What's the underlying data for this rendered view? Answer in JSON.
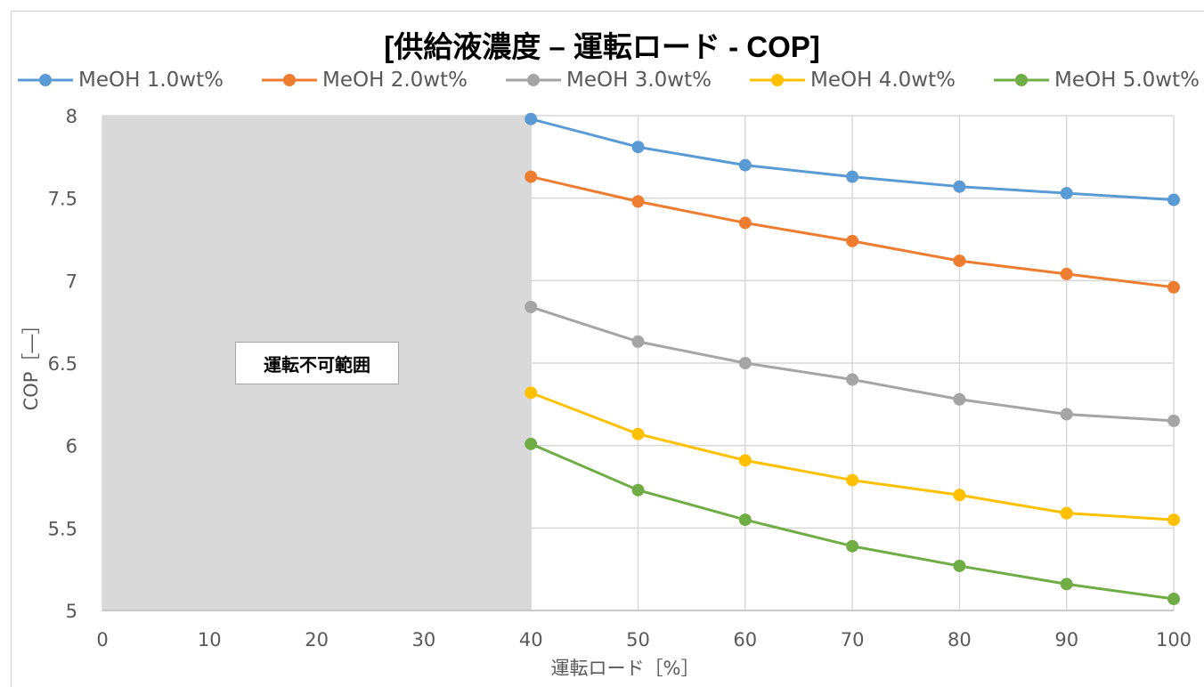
{
  "chart_data": {
    "type": "line",
    "title": "[供給液濃度 – 運転ロード - COP]",
    "xlabel": "運転ロード［%］",
    "ylabel": "COP［―］",
    "xlim": [
      0,
      100
    ],
    "ylim": [
      5,
      8
    ],
    "x_ticks": [
      "0",
      "10",
      "20",
      "30",
      "40",
      "50",
      "60",
      "70",
      "80",
      "90",
      "100"
    ],
    "y_ticks": [
      "5",
      "5.5",
      "6",
      "6.5",
      "7",
      "7.5",
      "8"
    ],
    "grid": true,
    "legend_position": "top",
    "x": [
      40,
      50,
      60,
      70,
      80,
      90,
      100
    ],
    "series": [
      {
        "name": "MeOH 1.0wt%",
        "color": "#5b9bd5",
        "values": [
          7.98,
          7.81,
          7.7,
          7.63,
          7.57,
          7.53,
          7.49
        ]
      },
      {
        "name": "MeOH 2.0wt%",
        "color": "#ed7d31",
        "values": [
          7.63,
          7.48,
          7.35,
          7.24,
          7.12,
          7.04,
          6.96
        ]
      },
      {
        "name": "MeOH 3.0wt%",
        "color": "#a5a5a5",
        "values": [
          6.84,
          6.63,
          6.5,
          6.4,
          6.28,
          6.19,
          6.15
        ]
      },
      {
        "name": "MeOH 4.0wt%",
        "color": "#ffc000",
        "values": [
          6.32,
          6.07,
          5.91,
          5.79,
          5.7,
          5.59,
          5.55
        ]
      },
      {
        "name": "MeOH 5.0wt%",
        "color": "#70ad47",
        "values": [
          6.01,
          5.73,
          5.55,
          5.39,
          5.27,
          5.16,
          5.07
        ]
      }
    ],
    "shaded_region": {
      "x_from": 0,
      "x_to": 40,
      "label": "運転不可範囲",
      "color": "#d9d9d9"
    }
  }
}
